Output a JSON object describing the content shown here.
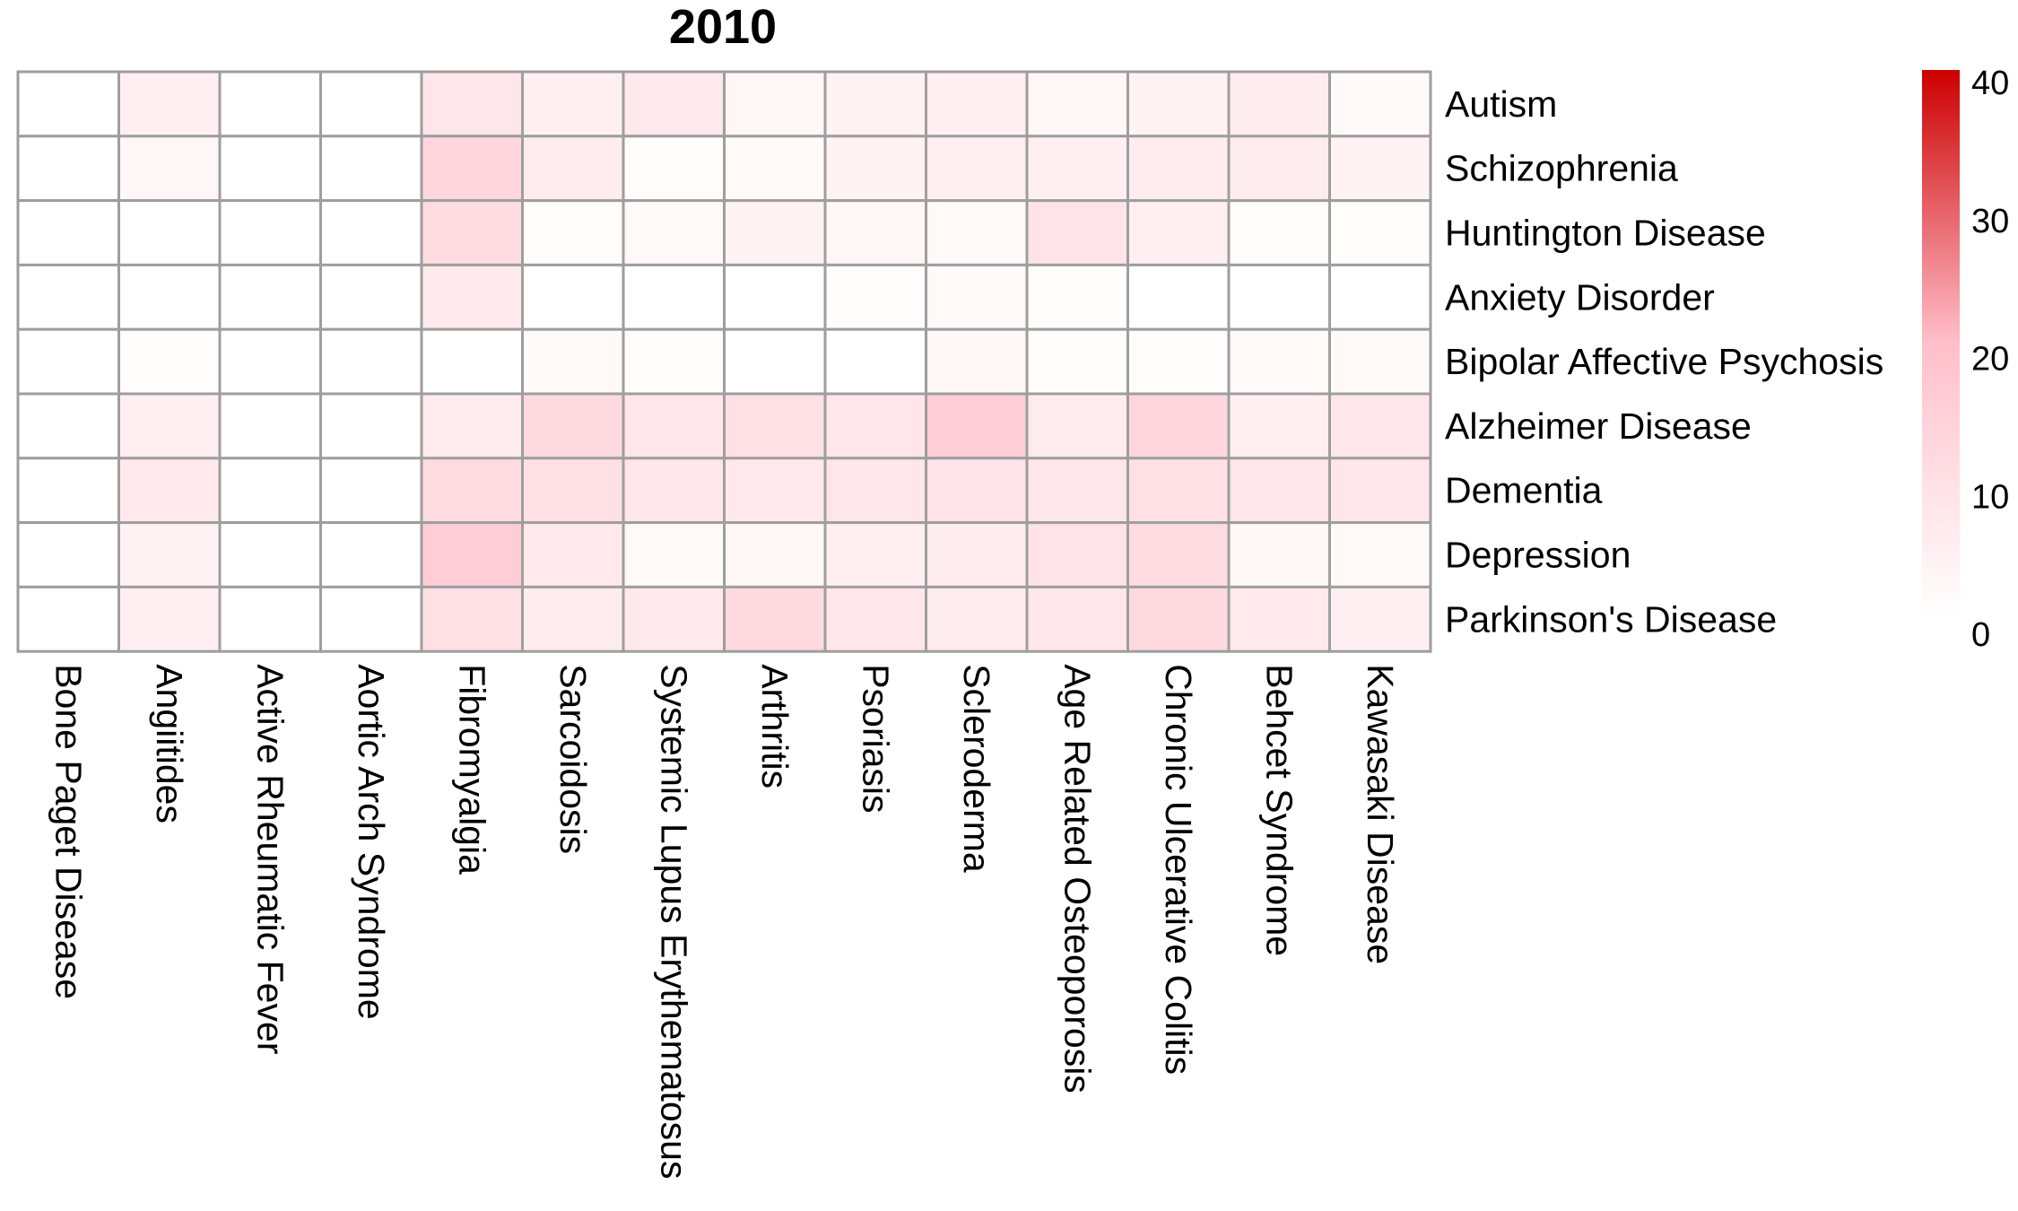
{
  "chart_data": {
    "type": "heatmap",
    "title": "2010",
    "rows": [
      "Autism",
      "Schizophrenia",
      "Huntington Disease",
      "Anxiety Disorder",
      "Bipolar Affective Psychosis",
      "Alzheimer Disease",
      "Dementia",
      "Depression",
      "Parkinson's Disease"
    ],
    "columns": [
      "Bone Paget Disease",
      "Angiitides",
      "Active Rheumatic Fever",
      "Aortic Arch Syndrome",
      "Fibromyalgia",
      "Sarcoidosis",
      "Systemic Lupus Erythematosus",
      "Arthritis",
      "Psoriasis",
      "Scleroderma",
      "Age Related Osteoporosis",
      "Chronic Ulcerative Colitis",
      "Behcet Syndrome",
      "Kawasaki Disease"
    ],
    "values": [
      [
        0,
        5,
        0,
        0,
        8,
        5,
        7,
        3,
        4,
        5,
        3,
        4,
        6,
        2
      ],
      [
        0,
        3,
        0,
        0,
        13,
        6,
        1,
        2,
        4,
        5,
        5,
        6,
        6,
        4
      ],
      [
        0,
        0,
        0,
        0,
        11,
        1,
        2,
        4,
        3,
        2,
        9,
        5,
        1,
        1
      ],
      [
        0,
        0,
        0,
        0,
        7,
        0,
        0,
        0,
        1,
        2,
        1,
        0,
        0,
        0
      ],
      [
        0,
        1,
        0,
        0,
        0,
        2,
        1,
        0,
        0,
        3,
        1,
        1,
        2,
        2
      ],
      [
        0,
        5,
        0,
        0,
        6,
        12,
        8,
        10,
        8,
        16,
        6,
        13,
        5,
        8
      ],
      [
        0,
        7,
        0,
        0,
        11,
        10,
        8,
        7,
        8,
        9,
        8,
        10,
        8,
        8
      ],
      [
        0,
        4,
        0,
        0,
        16,
        7,
        2,
        3,
        5,
        6,
        9,
        11,
        3,
        2
      ],
      [
        0,
        5,
        0,
        0,
        10,
        6,
        7,
        12,
        8,
        6,
        8,
        12,
        7,
        5
      ]
    ],
    "color_scale": {
      "min": 0,
      "max": 40,
      "ticks": [
        0,
        10,
        20,
        30,
        40
      ],
      "colors": [
        "#ffffff",
        "#ffc0cb",
        "#cc0000"
      ]
    },
    "legend_position": "right",
    "grid_color": "#9e9e9e"
  }
}
